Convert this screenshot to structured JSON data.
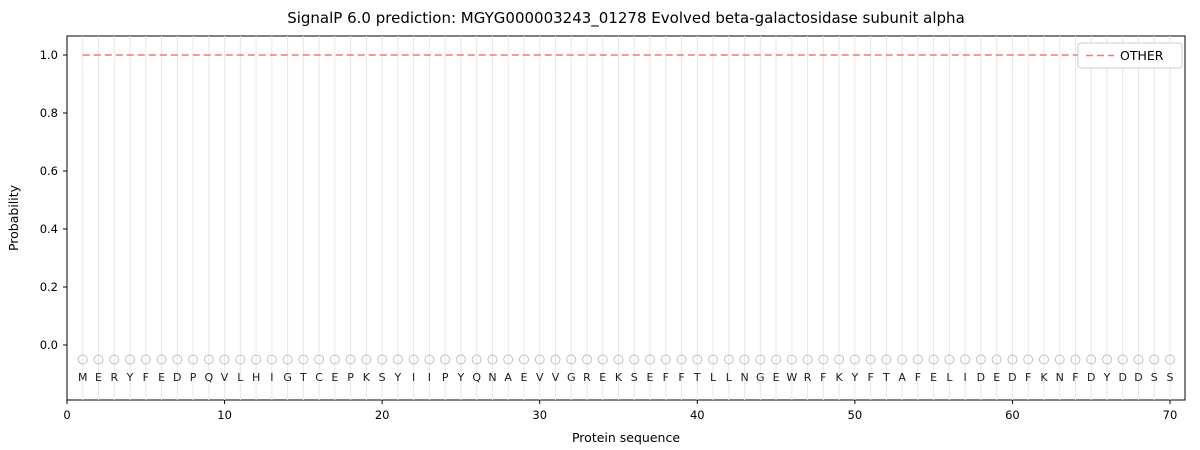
{
  "title": "SignalP 6.0 prediction: MGYG000003243_01278 Evolved beta-galactosidase subunit alpha",
  "legend": {
    "other_label": "OTHER"
  },
  "axes": {
    "xlabel": "Protein sequence",
    "ylabel": "Probability"
  },
  "colors": {
    "other_line": "#f07878",
    "grid": "#e7e7e7",
    "marker_stroke": "#c0c0c0",
    "letter": "#1a1a1a",
    "axis": "#000000",
    "legend_border": "#cccccc"
  },
  "chart_data": {
    "type": "line",
    "title": "SignalP 6.0 prediction: MGYG000003243_01278 Evolved beta-galactosidase subunit alpha",
    "xlabel": "Protein sequence",
    "ylabel": "Probability",
    "sequence": "MERYFEDPQVLHIGTCEPKSYIIPYQNAEVVGREKSEFFTLLNGEWRFKYFTAFELIDEDFKNFDYDDSS",
    "series": [
      {
        "name": "OTHER",
        "style": "dashed",
        "color": "#f07878",
        "x": [
          1,
          70
        ],
        "y": [
          1.0,
          1.0
        ]
      }
    ],
    "marker_y": -0.05,
    "xticks": [
      0,
      10,
      20,
      30,
      40,
      50,
      60,
      70
    ],
    "yticks": [
      0.0,
      0.2,
      0.4,
      0.6,
      0.8,
      1.0
    ],
    "xlim": [
      0,
      71
    ],
    "ylim": [
      -0.19,
      1.07
    ],
    "grid": "vertical-per-residue",
    "legend_position": "upper-right"
  }
}
